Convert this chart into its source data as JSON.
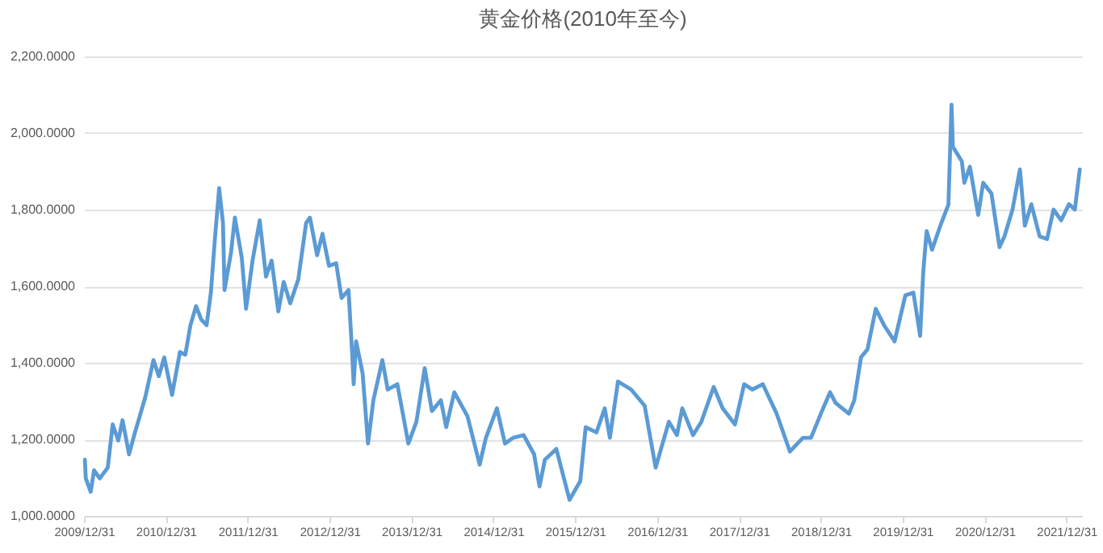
{
  "chart_data": {
    "type": "line",
    "title": "黄金价格(2010年至今)",
    "x": [
      "2010-01-04",
      "2010-01-08",
      "2010-01-30",
      "2010-02-14",
      "2010-03-11",
      "2010-04-16",
      "2010-05-08",
      "2010-06-02",
      "2010-06-21",
      "2010-07-20",
      "2010-08-12",
      "2010-09-30",
      "2010-11-06",
      "2010-11-30",
      "2010-12-24",
      "2011-01-28",
      "2011-03-04",
      "2011-03-28",
      "2011-04-20",
      "2011-05-15",
      "2011-06-07",
      "2011-07-01",
      "2011-07-20",
      "2011-08-07",
      "2011-08-26",
      "2011-09-12",
      "2011-09-19",
      "2011-10-18",
      "2011-11-04",
      "2011-12-05",
      "2011-12-24",
      "2012-01-22",
      "2012-02-23",
      "2012-03-22",
      "2012-04-16",
      "2012-05-16",
      "2012-06-09",
      "2012-07-08",
      "2012-08-13",
      "2012-09-17",
      "2012-10-04",
      "2012-11-05",
      "2012-11-29",
      "2012-12-28",
      "2013-01-29",
      "2013-02-22",
      "2013-03-25",
      "2013-04-10",
      "2013-04-17",
      "2013-04-28",
      "2013-05-27",
      "2013-06-20",
      "2013-07-14",
      "2013-08-23",
      "2013-09-16",
      "2013-10-29",
      "2013-12-17",
      "2014-01-22",
      "2014-02-28",
      "2014-04-01",
      "2014-05-11",
      "2014-06-04",
      "2014-07-10",
      "2014-09-07",
      "2014-10-31",
      "2014-11-28",
      "2015-01-16",
      "2015-02-21",
      "2015-03-29",
      "2015-05-15",
      "2015-07-01",
      "2015-07-25",
      "2015-08-18",
      "2015-10-08",
      "2015-12-06",
      "2016-01-23",
      "2016-02-16",
      "2016-04-04",
      "2016-05-11",
      "2016-06-03",
      "2016-07-09",
      "2016-09-06",
      "2016-11-05",
      "2016-12-24",
      "2017-02-21",
      "2017-03-29",
      "2017-04-22",
      "2017-06-09",
      "2017-07-16",
      "2017-09-09",
      "2017-10-19",
      "2017-12-13",
      "2018-01-23",
      "2018-02-28",
      "2018-04-16",
      "2018-06-17",
      "2018-08-15",
      "2018-10-12",
      "2018-11-17",
      "2019-01-05",
      "2019-02-10",
      "2019-03-07",
      "2019-05-05",
      "2019-05-29",
      "2019-06-28",
      "2019-07-27",
      "2019-09-02",
      "2019-10-09",
      "2019-11-25",
      "2020-01-12",
      "2020-02-17",
      "2020-03-18",
      "2020-04-01",
      "2020-04-16",
      "2020-05-10",
      "2020-06-16",
      "2020-07-22",
      "2020-08-05",
      "2020-08-11",
      "2020-09-20",
      "2020-10-01",
      "2020-10-26",
      "2020-12-02",
      "2020-12-24",
      "2021-01-30",
      "2021-03-07",
      "2021-03-29",
      "2021-05-04",
      "2021-06-06",
      "2021-06-28",
      "2021-07-27",
      "2021-09-02",
      "2021-10-05",
      "2021-11-03",
      "2021-12-07",
      "2022-01-11",
      "2022-02-06",
      "2022-02-28"
    ],
    "series": [
      {
        "color": "#5b9bd5",
        "values": [
          1147,
          1098,
          1063,
          1119,
          1098,
          1126,
          1239,
          1197,
          1250,
          1161,
          1211,
          1309,
          1407,
          1365,
          1414,
          1316,
          1428,
          1421,
          1498,
          1548,
          1513,
          1498,
          1583,
          1723,
          1856,
          1765,
          1590,
          1688,
          1779,
          1674,
          1541,
          1667,
          1772,
          1625,
          1667,
          1534,
          1611,
          1555,
          1618,
          1765,
          1779,
          1681,
          1737,
          1653,
          1660,
          1569,
          1590,
          1428,
          1344,
          1456,
          1372,
          1189,
          1302,
          1407,
          1330,
          1344,
          1189,
          1246,
          1386,
          1274,
          1302,
          1232,
          1323,
          1260,
          1134,
          1204,
          1281,
          1189,
          1204,
          1211,
          1161,
          1077,
          1147,
          1175,
          1042,
          1091,
          1232,
          1218,
          1281,
          1204,
          1351,
          1330,
          1288,
          1126,
          1246,
          1211,
          1281,
          1211,
          1246,
          1337,
          1281,
          1239,
          1344,
          1330,
          1344,
          1267,
          1168,
          1204,
          1204,
          1274,
          1323,
          1295,
          1267,
          1302,
          1414,
          1435,
          1541,
          1498,
          1456,
          1576,
          1583,
          1470,
          1639,
          1744,
          1695,
          1758,
          1813,
          2074,
          1964,
          1926,
          1870,
          1912,
          1786,
          1870,
          1842,
          1702,
          1730,
          1800,
          1905,
          1758,
          1814,
          1730,
          1723,
          1800,
          1772,
          1814,
          1800,
          1905
        ]
      }
    ],
    "xlim": [
      "2009-12-31",
      "2022-03-10"
    ],
    "xticks": [
      {
        "value": "2009-12-31",
        "label": "2009/12/31"
      },
      {
        "value": "2010-12-31",
        "label": "2010/12/31"
      },
      {
        "value": "2011-12-31",
        "label": "2011/12/31"
      },
      {
        "value": "2012-12-31",
        "label": "2012/12/31"
      },
      {
        "value": "2013-12-31",
        "label": "2013/12/31"
      },
      {
        "value": "2014-12-31",
        "label": "2014/12/31"
      },
      {
        "value": "2015-12-31",
        "label": "2015/12/31"
      },
      {
        "value": "2016-12-31",
        "label": "2016/12/31"
      },
      {
        "value": "2017-12-31",
        "label": "2017/12/31"
      },
      {
        "value": "2018-12-31",
        "label": "2018/12/31"
      },
      {
        "value": "2019-12-31",
        "label": "2019/12/31"
      },
      {
        "value": "2020-12-31",
        "label": "2020/12/31"
      },
      {
        "value": "2021-12-31",
        "label": "2021/12/31"
      }
    ],
    "ylim": [
      1000,
      2200
    ],
    "yticks": [
      {
        "value": 1000,
        "label": "1,000.0000"
      },
      {
        "value": 1200,
        "label": "1,200.0000"
      },
      {
        "value": 1400,
        "label": "1,400.0000"
      },
      {
        "value": 1600,
        "label": "1,600.0000"
      },
      {
        "value": 1800,
        "label": "1,800.0000"
      },
      {
        "value": 2000,
        "label": "2,000.0000"
      },
      {
        "value": 2200,
        "label": "2,200.0000"
      }
    ],
    "grid": "y",
    "marker": "none",
    "line_style": "solid"
  }
}
